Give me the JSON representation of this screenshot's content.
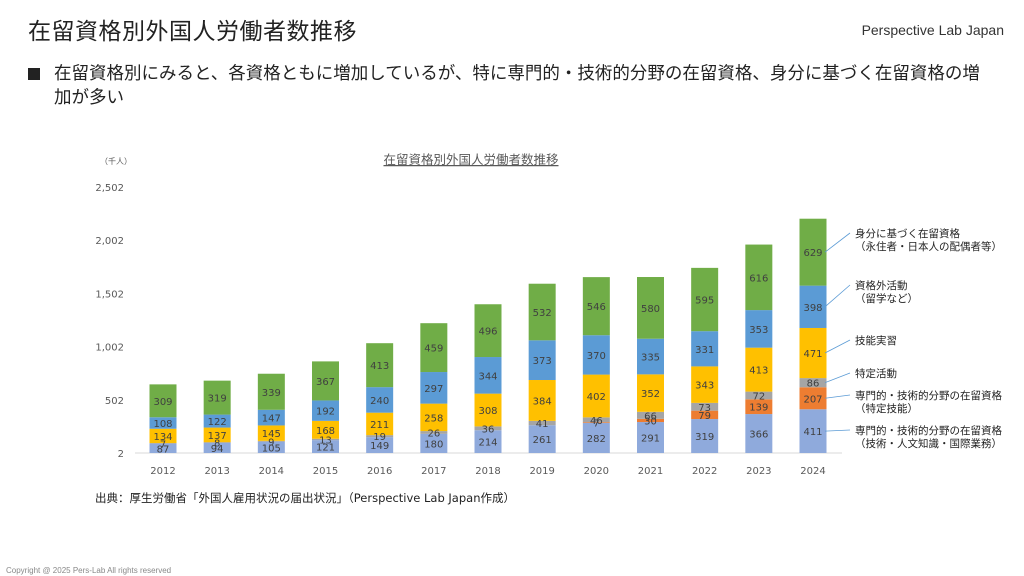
{
  "header": {
    "title": "在留資格別外国人労働者数推移",
    "brand": "Perspective Lab Japan"
  },
  "bullet": {
    "text": "在留資格別にみると、各資格ともに増加しているが、特に専門的・技術的分野の在留資格、身分に基づく在留資格の増加が多い"
  },
  "footer": {
    "source": "出典：厚生労働省「外国人雇用状況の届出状況」（Perspective Lab Japan作成）",
    "copyright": "Copyright @ 2025 Pers-Lab All rights reserved"
  },
  "chart_data": {
    "type": "bar",
    "stacked": true,
    "title": "在留資格別外国人労働者数推移",
    "unit_label": "（千人）",
    "xlabel": "",
    "ylabel": "",
    "ylim": [
      2,
      2502
    ],
    "yticks": [
      2,
      502,
      1002,
      1502,
      2002,
      2502
    ],
    "ytick_labels": [
      "2",
      "502",
      "1,002",
      "1,502",
      "2,002",
      "2,502"
    ],
    "grid": false,
    "legend_placement": "right (line callouts to 2024 bar)",
    "categories": [
      "2012",
      "2013",
      "2014",
      "2015",
      "2016",
      "2017",
      "2018",
      "2019",
      "2020",
      "2021",
      "2022",
      "2023",
      "2024"
    ],
    "series": [
      {
        "name": "専門的・技術的分野の在留資格（技術・人文知識・国際業務）",
        "legend_lines": [
          "専門的・技術的分野の在留資格",
          "（技術・人文知識・国際業務）"
        ],
        "color": "#8faadc",
        "values": [
          87,
          94,
          105,
          121,
          149,
          180,
          214,
          261,
          282,
          291,
          319,
          366,
          411
        ]
      },
      {
        "name": "専門的・技術的分野の在留資格（特定技能）",
        "legend_lines": [
          "専門的・技術的分野の在留資格",
          "（特定技能）"
        ],
        "color": "#ed7d31",
        "values": [
          0,
          0,
          0,
          0,
          0,
          0,
          0,
          0,
          7,
          30,
          79,
          139,
          207
        ]
      },
      {
        "name": "特定活動",
        "legend_lines": [
          "特定活動"
        ],
        "color": "#a5a5a5",
        "values": [
          7,
          8,
          9,
          13,
          19,
          26,
          36,
          41,
          46,
          66,
          73,
          72,
          86
        ]
      },
      {
        "name": "技能実習",
        "legend_lines": [
          "技能実習"
        ],
        "color": "#ffc000",
        "values": [
          134,
          137,
          145,
          168,
          211,
          258,
          308,
          384,
          402,
          352,
          343,
          413,
          471
        ]
      },
      {
        "name": "資格外活動（留学など）",
        "legend_lines": [
          "資格外活動",
          "（留学など）"
        ],
        "color": "#5b9bd5",
        "values": [
          108,
          122,
          147,
          192,
          240,
          297,
          344,
          373,
          370,
          335,
          331,
          353,
          398
        ]
      },
      {
        "name": "身分に基づく在留資格（永住者・日本人の配偶者等）",
        "legend_lines": [
          "身分に基づく在留資格",
          "（永住者・日本人の配偶者等）"
        ],
        "color": "#70ad47",
        "values": [
          309,
          319,
          339,
          367,
          413,
          459,
          496,
          532,
          546,
          580,
          595,
          616,
          629
        ]
      }
    ]
  }
}
